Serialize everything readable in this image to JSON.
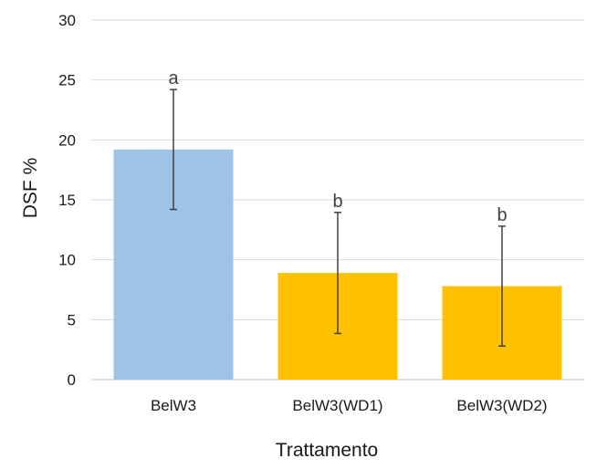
{
  "chart_data": {
    "type": "bar",
    "title": "",
    "xlabel": "Trattamento",
    "ylabel": "DSF %",
    "ylim": [
      0,
      30
    ],
    "yticks": [
      0,
      5,
      10,
      15,
      20,
      25,
      30
    ],
    "grid": true,
    "legend": "none",
    "categories": [
      "BelW3",
      "BelW3(WD1)",
      "BelW3(WD2)"
    ],
    "values": [
      19.2,
      8.9,
      7.8
    ],
    "error": [
      5.0,
      5.05,
      5.0
    ],
    "significance_labels": [
      "a",
      "b",
      "b"
    ],
    "bar_colors": [
      "#9DC3E6",
      "#FFC000",
      "#FFC000"
    ],
    "grid_color": "#D9D9D9",
    "axis_color": "#BFBFBF",
    "error_bar_color": "#404040"
  }
}
